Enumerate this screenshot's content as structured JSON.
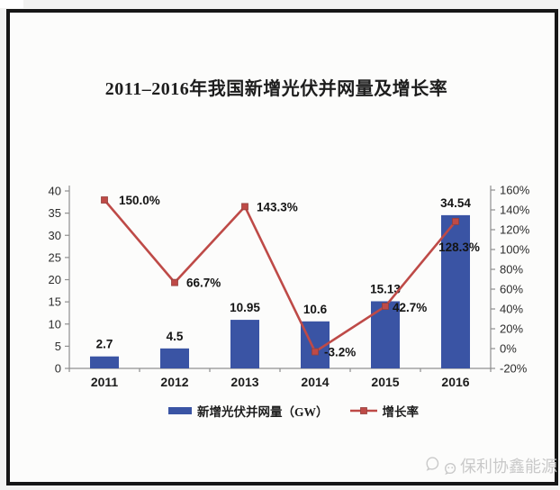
{
  "title": "2011–2016年我国新增光伏并网量及增长率",
  "watermark": {
    "text": "保利协鑫能源",
    "icon": "wechat-bubbles-icon"
  },
  "colors": {
    "bar": "#3a54a4",
    "line": "#be4a47",
    "marker_edge": "#93403d",
    "axis": "#8f8f8f",
    "watermark": "#c9c9c9"
  },
  "chart_data": {
    "type": "combo-bar-line",
    "title": "2011–2016年我国新增光伏并网量及增长率",
    "categories": [
      "2011",
      "2012",
      "2013",
      "2014",
      "2015",
      "2016"
    ],
    "series": [
      {
        "name": "新增光伏并网量（GW）",
        "type": "bar",
        "axis": "left",
        "values": [
          2.7,
          4.5,
          10.95,
          10.6,
          15.13,
          34.54
        ],
        "labels": [
          "2.7",
          "4.5",
          "10.95",
          "10.6",
          "15.13",
          "34.54"
        ]
      },
      {
        "name": "增长率",
        "type": "line",
        "axis": "right",
        "values": [
          150.0,
          66.7,
          143.3,
          -3.2,
          42.7,
          128.3
        ],
        "labels": [
          "150.0%",
          "66.7%",
          "143.3%",
          "-3.2%",
          "42.7%",
          "128.3%"
        ]
      }
    ],
    "left_axis": {
      "min": 0,
      "max": 40,
      "step": 5,
      "tick_labels": [
        "0",
        "5",
        "10",
        "15",
        "20",
        "25",
        "30",
        "35",
        "40"
      ]
    },
    "right_axis": {
      "min": -20,
      "max": 160,
      "step": 20,
      "tick_labels": [
        "-20%",
        "0%",
        "20%",
        "40%",
        "60%",
        "80%",
        "100%",
        "120%",
        "140%",
        "160%"
      ]
    },
    "grid": false,
    "legend_position": "bottom"
  }
}
